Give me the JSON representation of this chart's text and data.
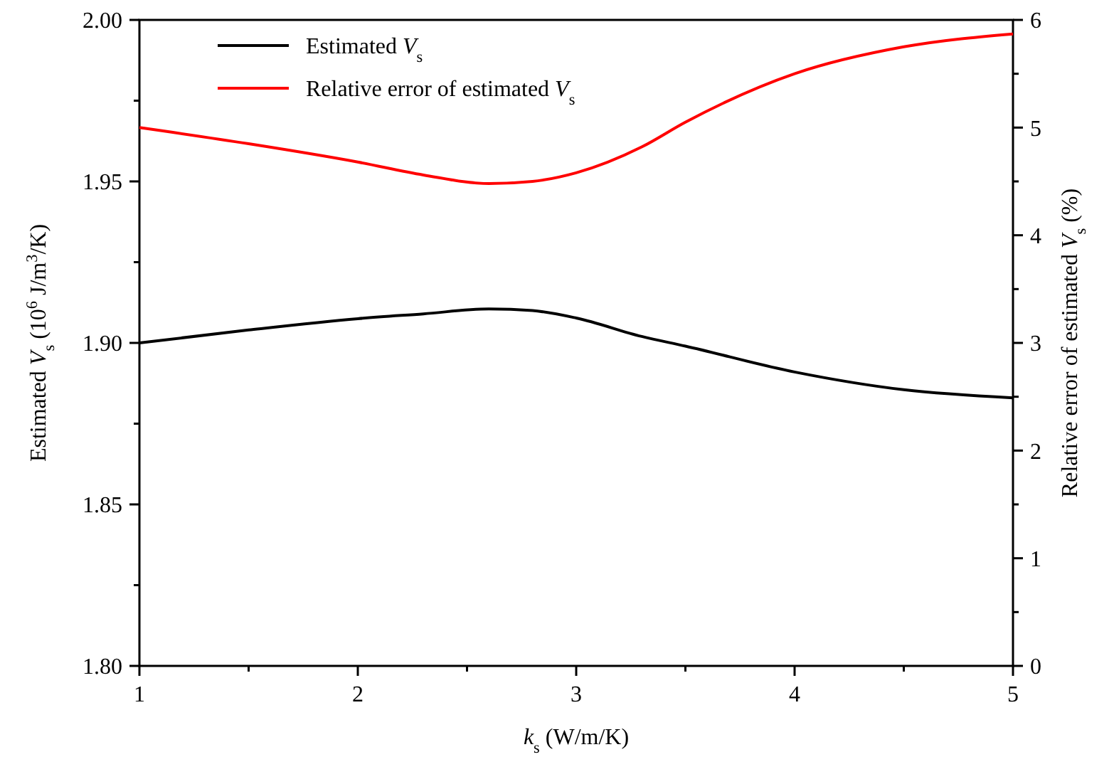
{
  "chart_data": {
    "type": "line",
    "xlabel": "k$_{s}$ (W/m/K)",
    "ylabel": "Estimated V$_{s}$ (10$^{6}$ J/m$^{3}$/K)",
    "y2label": "Relative error of estimated V$_{s}$ (%)",
    "xlim": [
      1,
      5
    ],
    "xticks": [
      1,
      {
        "value": 1.5,
        "label": null
      },
      2,
      {
        "value": 2.5,
        "label": null
      },
      3,
      {
        "value": 3.5,
        "label": null
      },
      4,
      {
        "value": 4.5,
        "label": null
      },
      5
    ],
    "ylim": [
      1.8,
      2.0
    ],
    "yticks": [
      {
        "value": 1.8,
        "label": "1.80"
      },
      {
        "value": 1.825,
        "label": null
      },
      1.85,
      {
        "value": 1.875,
        "label": null
      },
      {
        "value": 1.9,
        "label": "1.90"
      },
      {
        "value": 1.925,
        "label": null
      },
      1.95,
      {
        "value": 1.975,
        "label": null
      },
      {
        "value": 2.0,
        "label": "2.00"
      }
    ],
    "y2lim": [
      0,
      6
    ],
    "y2ticks": [
      0,
      {
        "value": 0.5,
        "label": null
      },
      1,
      {
        "value": 1.5,
        "label": null
      },
      2,
      {
        "value": 2.5,
        "label": null
      },
      3,
      {
        "value": 3.5,
        "label": null
      },
      4,
      {
        "value": 4.5,
        "label": null
      },
      5,
      {
        "value": 5.5,
        "label": null
      },
      6
    ],
    "x": [
      1,
      1.5,
      2,
      2.3,
      2.6,
      2.8,
      3,
      3.3,
      3.5,
      4,
      4.5,
      5
    ],
    "series": [
      {
        "name": "Estimated V$_{s}$",
        "color": "#000000",
        "values": [
          1.9,
          1.904,
          1.9075,
          1.909,
          1.9105,
          1.91,
          1.9077,
          1.902,
          1.899,
          1.891,
          1.8855,
          1.883
        ]
      },
      {
        "name": "Relative error of estimated V$_{s}$",
        "color": "#ff0000",
        "axis": "y2",
        "values": [
          5.0,
          4.85,
          4.68,
          4.56,
          4.48,
          4.5,
          4.58,
          4.82,
          5.05,
          5.5,
          5.75,
          5.87
        ]
      }
    ],
    "legend": "top left",
    "grid": false,
    "marker": "none",
    "line_style": "solid"
  }
}
